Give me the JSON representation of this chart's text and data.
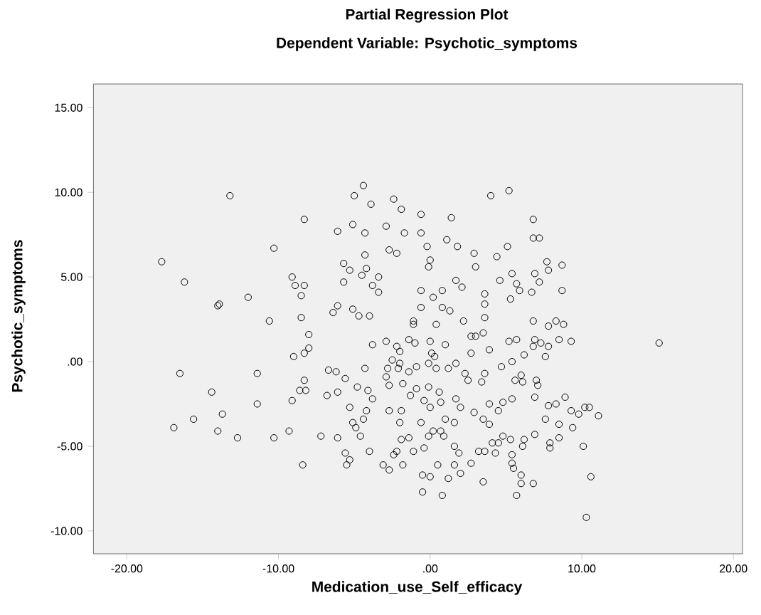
{
  "chart_data": {
    "type": "scatter",
    "title": "Partial Regression Plot",
    "subtitle": "Dependent Variable: Psychotic_symptoms",
    "xlabel": "Medication_use_Self_efficacy",
    "ylabel": "Psychotic_symptoms",
    "marker": "circle",
    "xlim": [
      -22.2,
      20.6
    ],
    "ylim": [
      -11.35,
      16.4
    ],
    "xticks": [
      {
        "value": -20,
        "label": "-20.00"
      },
      {
        "value": -10,
        "label": "-10.00"
      },
      {
        "value": 0,
        "label": ".00"
      },
      {
        "value": 10,
        "label": "10.00"
      },
      {
        "value": 20,
        "label": "20.00"
      }
    ],
    "yticks": [
      {
        "value": -10,
        "label": "-10.00"
      },
      {
        "value": -5,
        "label": "-5.00"
      },
      {
        "value": 0,
        "label": ".00"
      },
      {
        "value": 5,
        "label": "5.00"
      },
      {
        "value": 10,
        "label": "10.00"
      },
      {
        "value": 15,
        "label": "15.00"
      }
    ],
    "series": [
      {
        "color": "#000000",
        "x": [
          -13.2,
          -17.7,
          -16.2,
          -10.3,
          -8.3,
          -12.0,
          -13.9,
          -9.1,
          -8.9,
          -8.3,
          -8.5,
          -4.4,
          -5.0,
          -3.9,
          -2.4,
          -1.9,
          -5.1,
          -6.1,
          -4.3,
          -2.9,
          -1.7,
          -0.6,
          -0.6,
          -4.3,
          -2.7,
          -2.2,
          -5.7,
          -5.3,
          -4.2,
          -4.5,
          -3.4,
          -5.7,
          -3.8,
          -3.4,
          -0.6,
          -6.1,
          -0.6,
          4.0,
          5.2,
          1.4,
          6.8,
          -0.2,
          1.1,
          1.8,
          2.9,
          4.4,
          5.1,
          6.8,
          7.2,
          0.0,
          -0.1,
          3.0,
          1.7,
          2.1,
          4.6,
          5.4,
          5.7,
          5.9,
          6.9,
          7.2,
          7.7,
          7.8,
          8.7,
          8.7,
          6.7,
          5.3,
          0.2,
          0.8,
          3.6,
          3.6,
          0.8,
          1.3,
          -14.0,
          -10.6,
          -8.5,
          -8.0,
          -8.0,
          -9.0,
          -8.3,
          -16.5,
          -11.4,
          -14.4,
          -15.6,
          -16.9,
          -13.7,
          -14.0,
          -12.7,
          -11.4,
          -10.3,
          -9.3,
          -9.1,
          -8.6,
          -8.3,
          -8.2,
          -8.4,
          -7.2,
          -6.1,
          -6.8,
          -6.1,
          -6.7,
          -6.2,
          -5.6,
          -6.4,
          -5.1,
          -4.7,
          -4.0,
          -3.8,
          -4.3,
          -4.8,
          -4.1,
          -3.8,
          -5.3,
          -4.2,
          -4.4,
          -5.1,
          -4.9,
          -4.6,
          -5.6,
          -5.3,
          -5.5,
          -4.0,
          -2.9,
          -2.2,
          -2.5,
          -2.8,
          -2.1,
          -2.9,
          -2.7,
          -1.8,
          -1.4,
          -0.9,
          -1.4,
          -1.0,
          -1.3,
          -0.9,
          -2.7,
          -1.9,
          -2.0,
          -1.9,
          -1.4,
          -1.1,
          -2.2,
          -2.4,
          -3.1,
          -2.7,
          -1.8,
          -0.5,
          -0.5,
          -1.1,
          -1.1,
          0.4,
          2.2,
          3.6,
          3.5,
          3.0,
          2.7,
          0.0,
          1.0,
          -2.0,
          0.1,
          0.3,
          2.7,
          3.9,
          5.2,
          5.7,
          6.8,
          7.8,
          8.3,
          8.8,
          6.9,
          7.3,
          6.8,
          8.5,
          9.3,
          7.8,
          7.6,
          6.2,
          15.1,
          -2.0,
          -0.1,
          0.4,
          1.2,
          1.7,
          2.3,
          2.5,
          3.6,
          3.4,
          4.7,
          5.4,
          5.6,
          6.0,
          6.1,
          7.0,
          7.1,
          -0.1,
          0.6,
          -0.4,
          0.0,
          0.7,
          1.7,
          2.0,
          2.9,
          3.5,
          3.9,
          3.9,
          4.5,
          4.8,
          5.4,
          6.9,
          7.8,
          8.3,
          8.9,
          9.3,
          9.8,
          10.2,
          10.5,
          11.1,
          7.6,
          8.5,
          9.4,
          8.5,
          7.9,
          7.9,
          6.9,
          6.2,
          6.1,
          5.3,
          4.8,
          4.5,
          4.1,
          4.3,
          5.4,
          5.4,
          5.5,
          6.0,
          6.0,
          6.8,
          5.7,
          3.5,
          2.7,
          2.0,
          1.6,
          1.2,
          0.5,
          0.0,
          0.8,
          3.6,
          3.2,
          1.9,
          1.6,
          0.9,
          0.7,
          0.2,
          -0.1,
          -0.6,
          -0.4,
          10.1,
          10.6,
          10.3,
          1.0,
          1.6
        ],
        "values": [
          9.8,
          5.9,
          4.7,
          6.7,
          8.4,
          3.8,
          3.4,
          5.0,
          4.5,
          4.5,
          3.9,
          10.4,
          9.8,
          9.3,
          9.6,
          9.0,
          8.1,
          7.7,
          7.6,
          8.0,
          7.6,
          8.7,
          7.6,
          6.3,
          6.6,
          6.4,
          5.8,
          5.4,
          5.5,
          5.1,
          5.0,
          4.7,
          4.5,
          4.1,
          4.2,
          3.3,
          3.2,
          9.8,
          10.1,
          8.5,
          8.4,
          6.8,
          7.2,
          6.8,
          6.4,
          6.2,
          6.8,
          7.3,
          7.3,
          6.0,
          5.6,
          5.6,
          4.8,
          4.4,
          4.8,
          5.2,
          4.6,
          4.2,
          5.2,
          4.7,
          5.9,
          5.4,
          5.7,
          4.2,
          4.1,
          3.7,
          3.8,
          4.2,
          4.0,
          3.4,
          3.2,
          3.0,
          3.3,
          2.4,
          2.6,
          1.6,
          0.8,
          0.3,
          0.5,
          -0.7,
          -0.7,
          -1.8,
          -3.4,
          -3.9,
          -3.1,
          -4.1,
          -4.5,
          -2.5,
          -4.5,
          -4.1,
          -2.3,
          -1.7,
          -1.1,
          -1.7,
          -6.1,
          -4.4,
          -4.5,
          -2.0,
          -1.8,
          -0.5,
          -0.6,
          -1.0,
          2.9,
          3.1,
          2.7,
          2.7,
          1.0,
          -0.4,
          -1.5,
          -1.7,
          -2.2,
          -2.7,
          -2.9,
          -3.4,
          -3.6,
          -3.9,
          -4.4,
          -5.4,
          -5.8,
          -6.1,
          -5.3,
          1.2,
          0.9,
          0.1,
          -0.4,
          -0.4,
          -0.9,
          -1.4,
          -1.3,
          -0.6,
          -0.3,
          1.3,
          1.1,
          -2.0,
          -1.6,
          -2.9,
          -2.9,
          -3.6,
          -4.6,
          -4.5,
          -5.3,
          -5.3,
          -5.5,
          -6.1,
          -6.4,
          -6.1,
          -6.7,
          -7.7,
          2.2,
          2.4,
          2.2,
          2.4,
          2.6,
          1.7,
          1.5,
          1.5,
          1.2,
          1.0,
          0.6,
          0.5,
          0.3,
          0.5,
          0.7,
          1.2,
          1.3,
          2.4,
          2.1,
          2.4,
          2.2,
          1.3,
          1.1,
          0.9,
          1.3,
          1.2,
          0.9,
          0.3,
          0.4,
          1.1,
          -0.1,
          -0.1,
          -0.4,
          -0.4,
          -0.1,
          -0.7,
          -1.1,
          -0.7,
          -1.2,
          -0.3,
          0.0,
          -1.1,
          -0.8,
          -1.2,
          -1.1,
          -1.4,
          -1.5,
          -1.8,
          -2.3,
          -2.7,
          -2.4,
          -2.2,
          -2.7,
          -3.0,
          -3.4,
          -3.7,
          -2.5,
          -2.9,
          -2.4,
          -2.2,
          -2.1,
          -2.6,
          -2.5,
          -2.1,
          -2.9,
          -3.1,
          -2.7,
          -2.7,
          -3.2,
          -3.4,
          -3.7,
          -3.9,
          -4.5,
          -4.8,
          -5.1,
          -4.3,
          -4.6,
          -5.0,
          -4.6,
          -4.4,
          -4.8,
          -4.8,
          -5.4,
          -5.5,
          -6.0,
          -6.3,
          -6.7,
          -7.2,
          -7.2,
          -7.9,
          -7.1,
          -6.0,
          -6.6,
          -6.1,
          -6.9,
          -6.1,
          -6.8,
          -7.9,
          -5.3,
          -5.3,
          -5.4,
          -5.0,
          -4.4,
          -4.1,
          -4.1,
          -4.4,
          -3.6,
          -5.1,
          -5.0,
          -6.8,
          -9.2,
          -3.4,
          -3.6
        ]
      }
    ]
  }
}
